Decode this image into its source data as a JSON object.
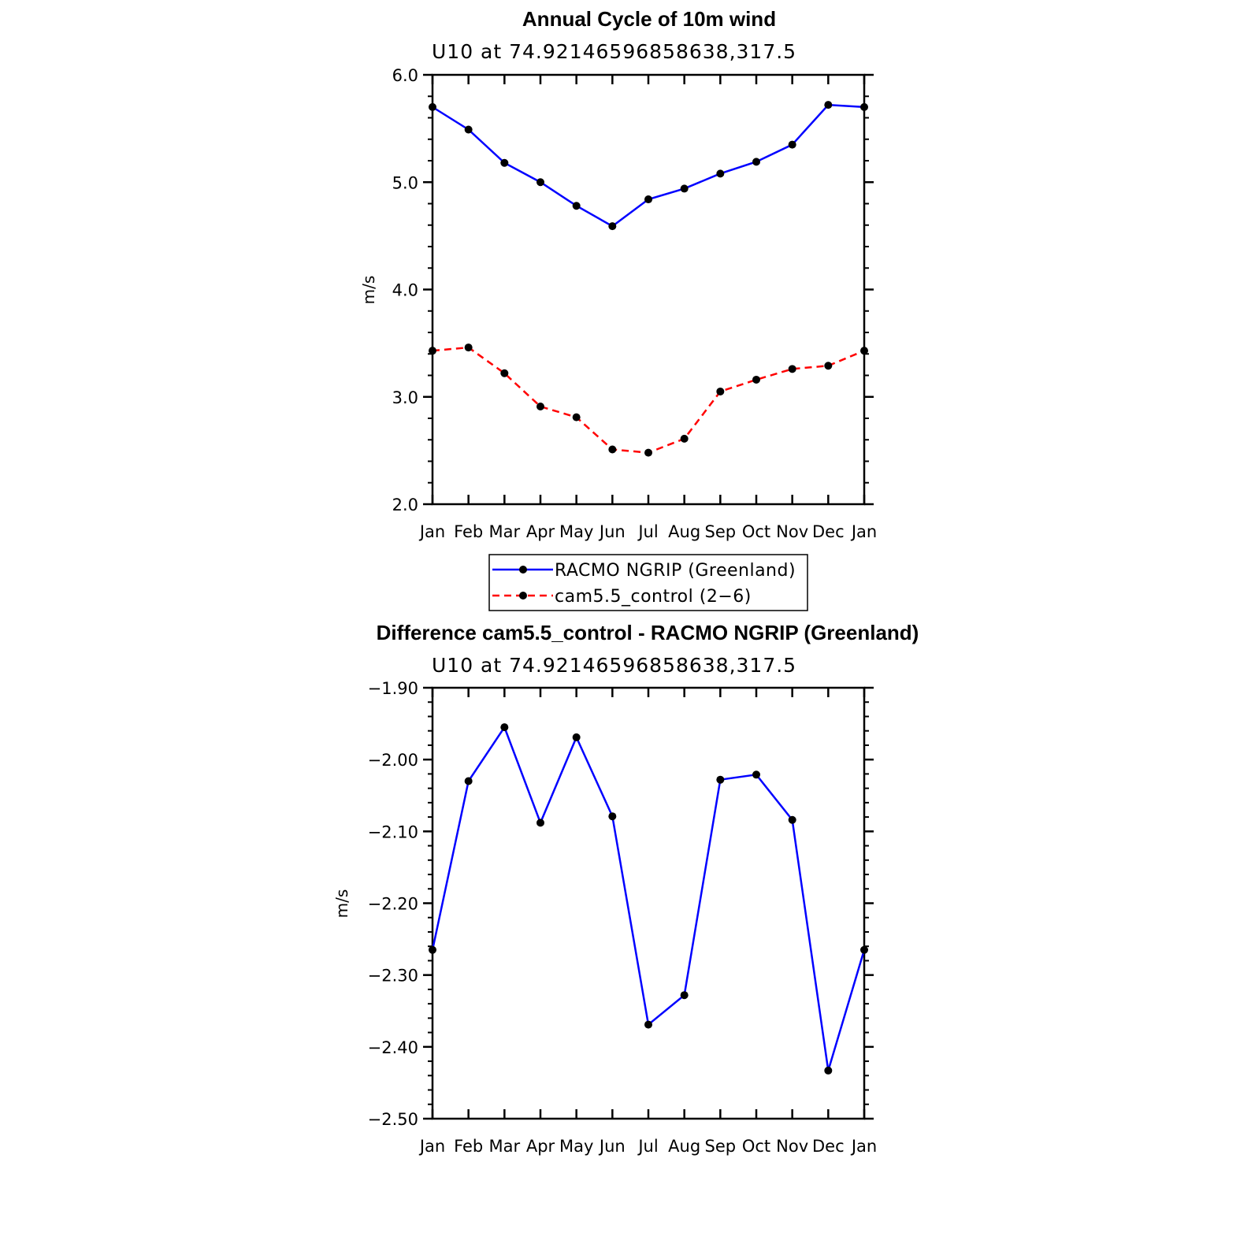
{
  "chart_data": [
    {
      "type": "line",
      "title": "Annual Cycle of 10m wind",
      "subtitle": "U10 at 74.92146596858638,317.5",
      "ylabel": "m/s",
      "xlabel": "",
      "ylim": [
        2.0,
        6.0
      ],
      "yticks": [
        "2.0",
        "3.0",
        "4.0",
        "5.0",
        "6.0"
      ],
      "categories": [
        "Jan",
        "Feb",
        "Mar",
        "Apr",
        "May",
        "Jun",
        "Jul",
        "Aug",
        "Sep",
        "Oct",
        "Nov",
        "Dec",
        "Jan"
      ],
      "series": [
        {
          "name": "RACMO NGRIP (Greenland)",
          "color": "#0000ff",
          "dash": "solid",
          "values": [
            5.7,
            5.49,
            5.18,
            5.0,
            4.78,
            4.59,
            4.84,
            4.94,
            5.08,
            5.19,
            5.35,
            5.72,
            5.7
          ]
        },
        {
          "name": "cam5.5_control (2−6)",
          "color": "#ff0000",
          "dash": "dashed",
          "values": [
            3.43,
            3.46,
            3.22,
            2.91,
            2.81,
            2.51,
            2.48,
            2.61,
            3.05,
            3.16,
            3.26,
            3.29,
            3.43
          ]
        }
      ],
      "legend": "below"
    },
    {
      "type": "line",
      "title": "Difference cam5.5_control - RACMO NGRIP (Greenland)",
      "subtitle": "U10 at 74.92146596858638,317.5",
      "ylabel": "m/s",
      "xlabel": "",
      "ylim": [
        -2.5,
        -1.9
      ],
      "yticks": [
        "−2.50",
        "−2.40",
        "−2.30",
        "−2.20",
        "−2.10",
        "−2.00",
        "−1.90"
      ],
      "categories": [
        "Jan",
        "Feb",
        "Mar",
        "Apr",
        "May",
        "Jun",
        "Jul",
        "Aug",
        "Sep",
        "Oct",
        "Nov",
        "Dec",
        "Jan"
      ],
      "series": [
        {
          "color": "#0000ff",
          "dash": "solid",
          "values": [
            -2.265,
            -2.03,
            -1.955,
            -2.088,
            -1.969,
            -2.079,
            -2.369,
            -2.328,
            -2.028,
            -2.021,
            -2.084,
            -2.433,
            -2.265
          ]
        }
      ]
    }
  ]
}
